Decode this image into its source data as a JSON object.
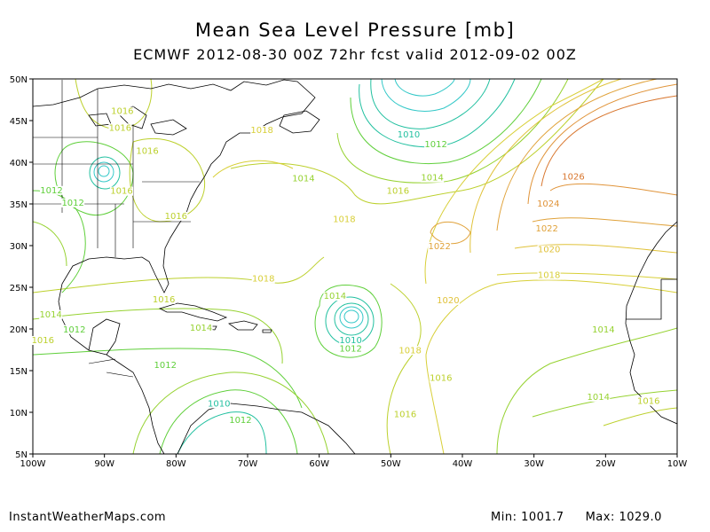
{
  "title": "Mean Sea Level Pressure [mb]",
  "subtitle": "ECMWF 2012-08-30 00Z 72hr fcst valid 2012-09-02 00Z",
  "footer": {
    "site": "InstantWeatherMaps.com",
    "min": "Min: 1001.7",
    "max": "Max: 1029.0"
  },
  "colors": {
    "low": "#33c8c8",
    "1010": "#22c0a0",
    "1012": "#5fcf3a",
    "1014": "#96d231",
    "1016": "#bcd02c",
    "1018": "#d8cf38",
    "1020": "#e0c23a",
    "1022": "#e0a23a",
    "1024": "#e0943a",
    "1026": "#d8762e",
    "coast": "#000000"
  },
  "map": {
    "lon_range": [
      -100,
      -10
    ],
    "lat_range": [
      5,
      50
    ],
    "lon_ticks": [
      "100W",
      "90W",
      "80W",
      "70W",
      "60W",
      "50W",
      "40W",
      "30W",
      "20W",
      "10W"
    ],
    "lat_ticks": [
      "5N",
      "10N",
      "15N",
      "20N",
      "25N",
      "30N",
      "35N",
      "40N",
      "45N",
      "50N"
    ],
    "contour_labels": [
      {
        "text": "1016",
        "lon": -87.5,
        "lat": 45.8,
        "level": "1016"
      },
      {
        "text": "1016",
        "lon": -87.8,
        "lat": 43.8,
        "level": "1016"
      },
      {
        "text": "1016",
        "lon": -84.0,
        "lat": 41.0,
        "level": "1016"
      },
      {
        "text": "1016",
        "lon": -87.6,
        "lat": 36.2,
        "level": "1016"
      },
      {
        "text": "1016",
        "lon": -80.0,
        "lat": 33.2,
        "level": "1016"
      },
      {
        "text": "1018",
        "lon": -68.0,
        "lat": 43.5,
        "level": "1018"
      },
      {
        "text": "1014",
        "lon": -62.2,
        "lat": 37.7,
        "level": "1014"
      },
      {
        "text": "1012",
        "lon": -97.4,
        "lat": 36.3,
        "level": "1012"
      },
      {
        "text": "1012",
        "lon": -94.4,
        "lat": 34.8,
        "level": "1012"
      },
      {
        "text": "1010",
        "lon": -47.5,
        "lat": 43.0,
        "level": "1010"
      },
      {
        "text": "1012",
        "lon": -43.7,
        "lat": 41.8,
        "level": "1012"
      },
      {
        "text": "1014",
        "lon": -44.2,
        "lat": 37.8,
        "level": "1014"
      },
      {
        "text": "1016",
        "lon": -49.0,
        "lat": 36.2,
        "level": "1016"
      },
      {
        "text": "1018",
        "lon": -56.5,
        "lat": 32.8,
        "level": "1018"
      },
      {
        "text": "1022",
        "lon": -43.2,
        "lat": 29.6,
        "level": "1022"
      },
      {
        "text": "1026",
        "lon": -24.5,
        "lat": 37.9,
        "level": "1026"
      },
      {
        "text": "1024",
        "lon": -28.0,
        "lat": 34.7,
        "level": "1024"
      },
      {
        "text": "1022",
        "lon": -28.2,
        "lat": 31.7,
        "level": "1022"
      },
      {
        "text": "1020",
        "lon": -27.9,
        "lat": 29.2,
        "level": "1020"
      },
      {
        "text": "1018",
        "lon": -27.9,
        "lat": 26.1,
        "level": "1018"
      },
      {
        "text": "1018",
        "lon": -67.8,
        "lat": 25.7,
        "level": "1018"
      },
      {
        "text": "1020",
        "lon": -42.0,
        "lat": 23.1,
        "level": "1020"
      },
      {
        "text": "1014",
        "lon": -57.8,
        "lat": 23.6,
        "level": "1014"
      },
      {
        "text": "1016",
        "lon": -81.7,
        "lat": 23.2,
        "level": "1016"
      },
      {
        "text": "1014",
        "lon": -97.5,
        "lat": 21.4,
        "level": "1014"
      },
      {
        "text": "1012",
        "lon": -94.2,
        "lat": 19.6,
        "level": "1012"
      },
      {
        "text": "1014",
        "lon": -76.5,
        "lat": 19.8,
        "level": "1014"
      },
      {
        "text": "1010",
        "lon": -55.6,
        "lat": 18.3,
        "level": "1010"
      },
      {
        "text": "1012",
        "lon": -55.6,
        "lat": 17.3,
        "level": "1012"
      },
      {
        "text": "1018",
        "lon": -47.3,
        "lat": 17.1,
        "level": "1018"
      },
      {
        "text": "1014",
        "lon": -20.3,
        "lat": 19.6,
        "level": "1014"
      },
      {
        "text": "1016",
        "lon": -98.6,
        "lat": 18.3,
        "level": "1016"
      },
      {
        "text": "1012",
        "lon": -81.5,
        "lat": 15.3,
        "level": "1012"
      },
      {
        "text": "1016",
        "lon": -43.0,
        "lat": 13.8,
        "level": "1016"
      },
      {
        "text": "1014",
        "lon": -21.0,
        "lat": 11.5,
        "level": "1014"
      },
      {
        "text": "1016",
        "lon": -14.0,
        "lat": 11.0,
        "level": "1016"
      },
      {
        "text": "1016",
        "lon": -48.0,
        "lat": 9.4,
        "level": "1016"
      },
      {
        "text": "1010",
        "lon": -74.0,
        "lat": 10.7,
        "level": "1010"
      },
      {
        "text": "1012",
        "lon": -71.0,
        "lat": 8.7,
        "level": "1012"
      }
    ]
  }
}
